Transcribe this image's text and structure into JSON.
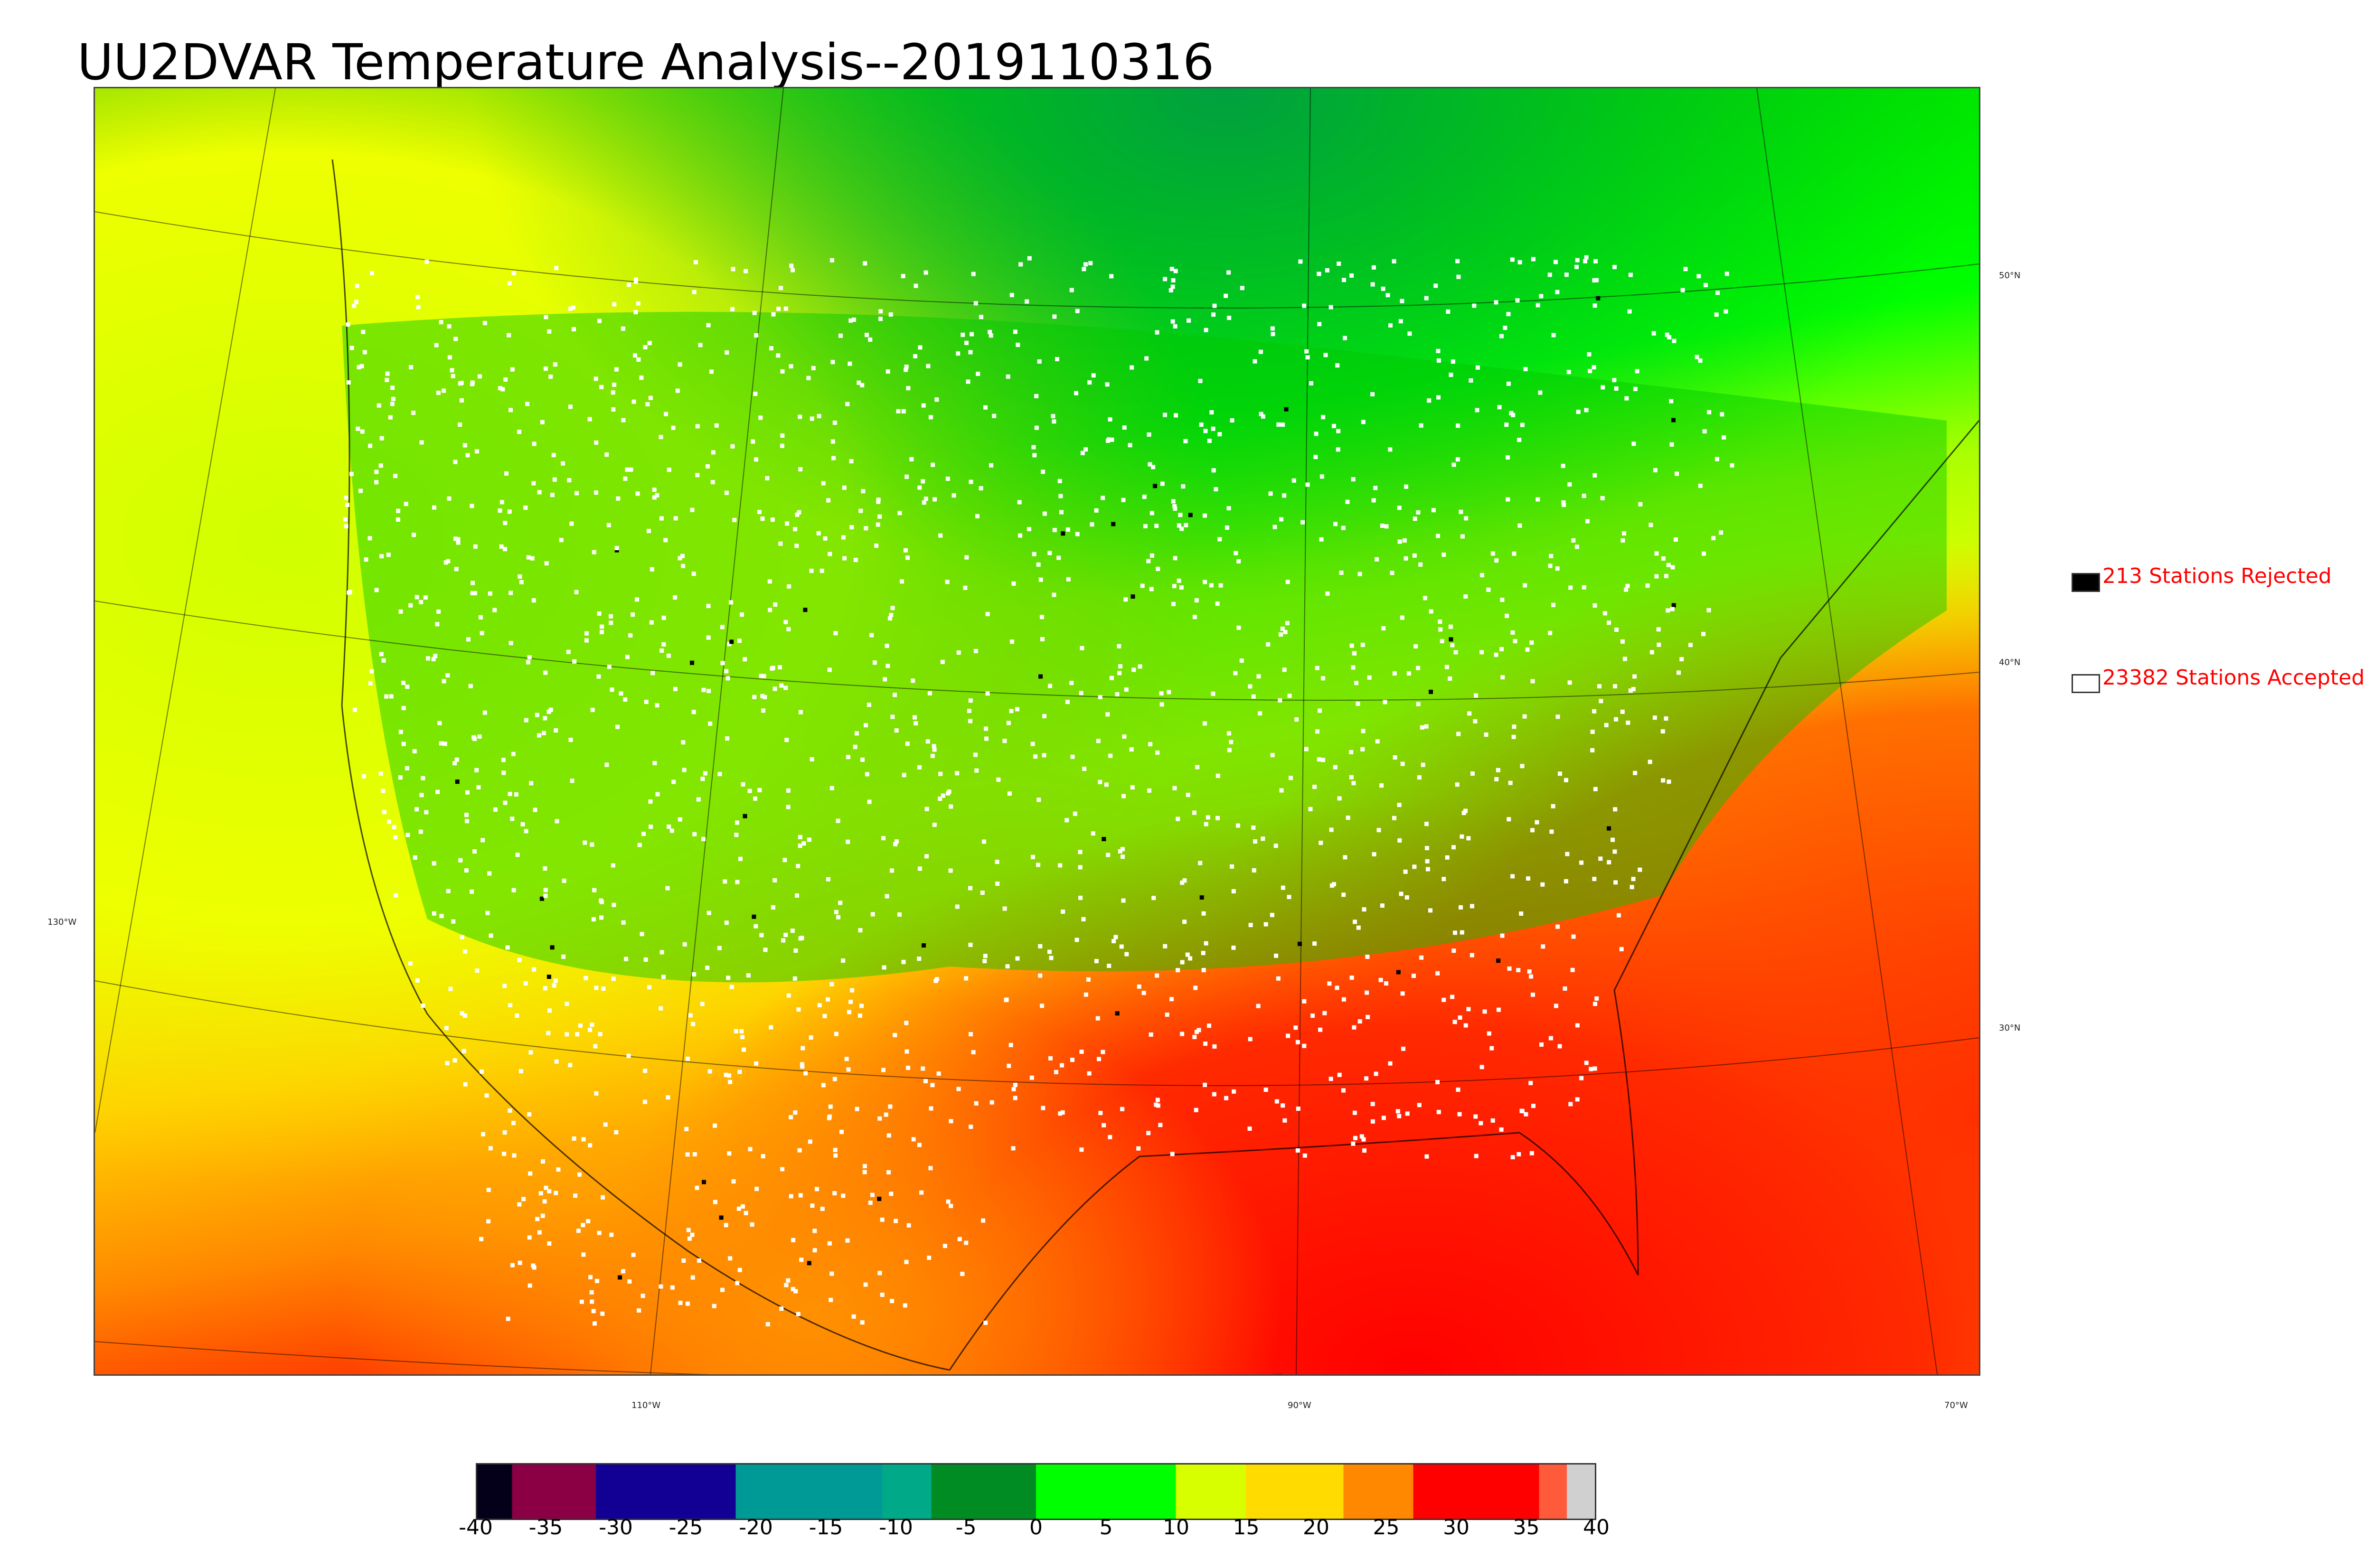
{
  "title": "UU2DVAR Temperature Analysis--2019110316",
  "graticule": {
    "lat_labels": [
      "50°N",
      "40°N",
      "30°N"
    ],
    "lon_labels": [
      "130°W",
      "110°W",
      "90°W",
      "70°W"
    ]
  },
  "legend": {
    "rejected": {
      "label": "213 Stations Rejected",
      "swatch_color": "#000000"
    },
    "accepted": {
      "label": "23382 Stations Accepted",
      "swatch_color": "#ffffff"
    }
  },
  "colorbar": {
    "ticks": [
      "-40",
      "-35",
      "-30",
      "-25",
      "-20",
      "-15",
      "-10",
      "-5",
      "0",
      "5",
      "10",
      "15",
      "20",
      "25",
      "30",
      "35",
      "40"
    ],
    "segments": [
      {
        "from": -40,
        "to": -37.5,
        "color": "#05001a"
      },
      {
        "from": -37.5,
        "to": -31.5,
        "color": "#8b0045"
      },
      {
        "from": -31.5,
        "to": -21.5,
        "color": "#120094"
      },
      {
        "from": -21.5,
        "to": -11,
        "color": "#009a96"
      },
      {
        "from": -11,
        "to": -7.5,
        "color": "#00aa88"
      },
      {
        "from": -7.5,
        "to": 0,
        "color": "#008c22"
      },
      {
        "from": 0,
        "to": 10,
        "color": "#00ff00"
      },
      {
        "from": 10,
        "to": 15,
        "color": "#d8ff00"
      },
      {
        "from": 15,
        "to": 22,
        "color": "#ffdb00"
      },
      {
        "from": 22,
        "to": 27,
        "color": "#ff8800"
      },
      {
        "from": 27,
        "to": 36,
        "color": "#ff0000"
      },
      {
        "from": 36,
        "to": 38,
        "color": "#ff5a3a"
      },
      {
        "from": 38,
        "to": 40,
        "color": "#d0d0d0"
      }
    ],
    "range": [
      -40,
      40
    ]
  }
}
